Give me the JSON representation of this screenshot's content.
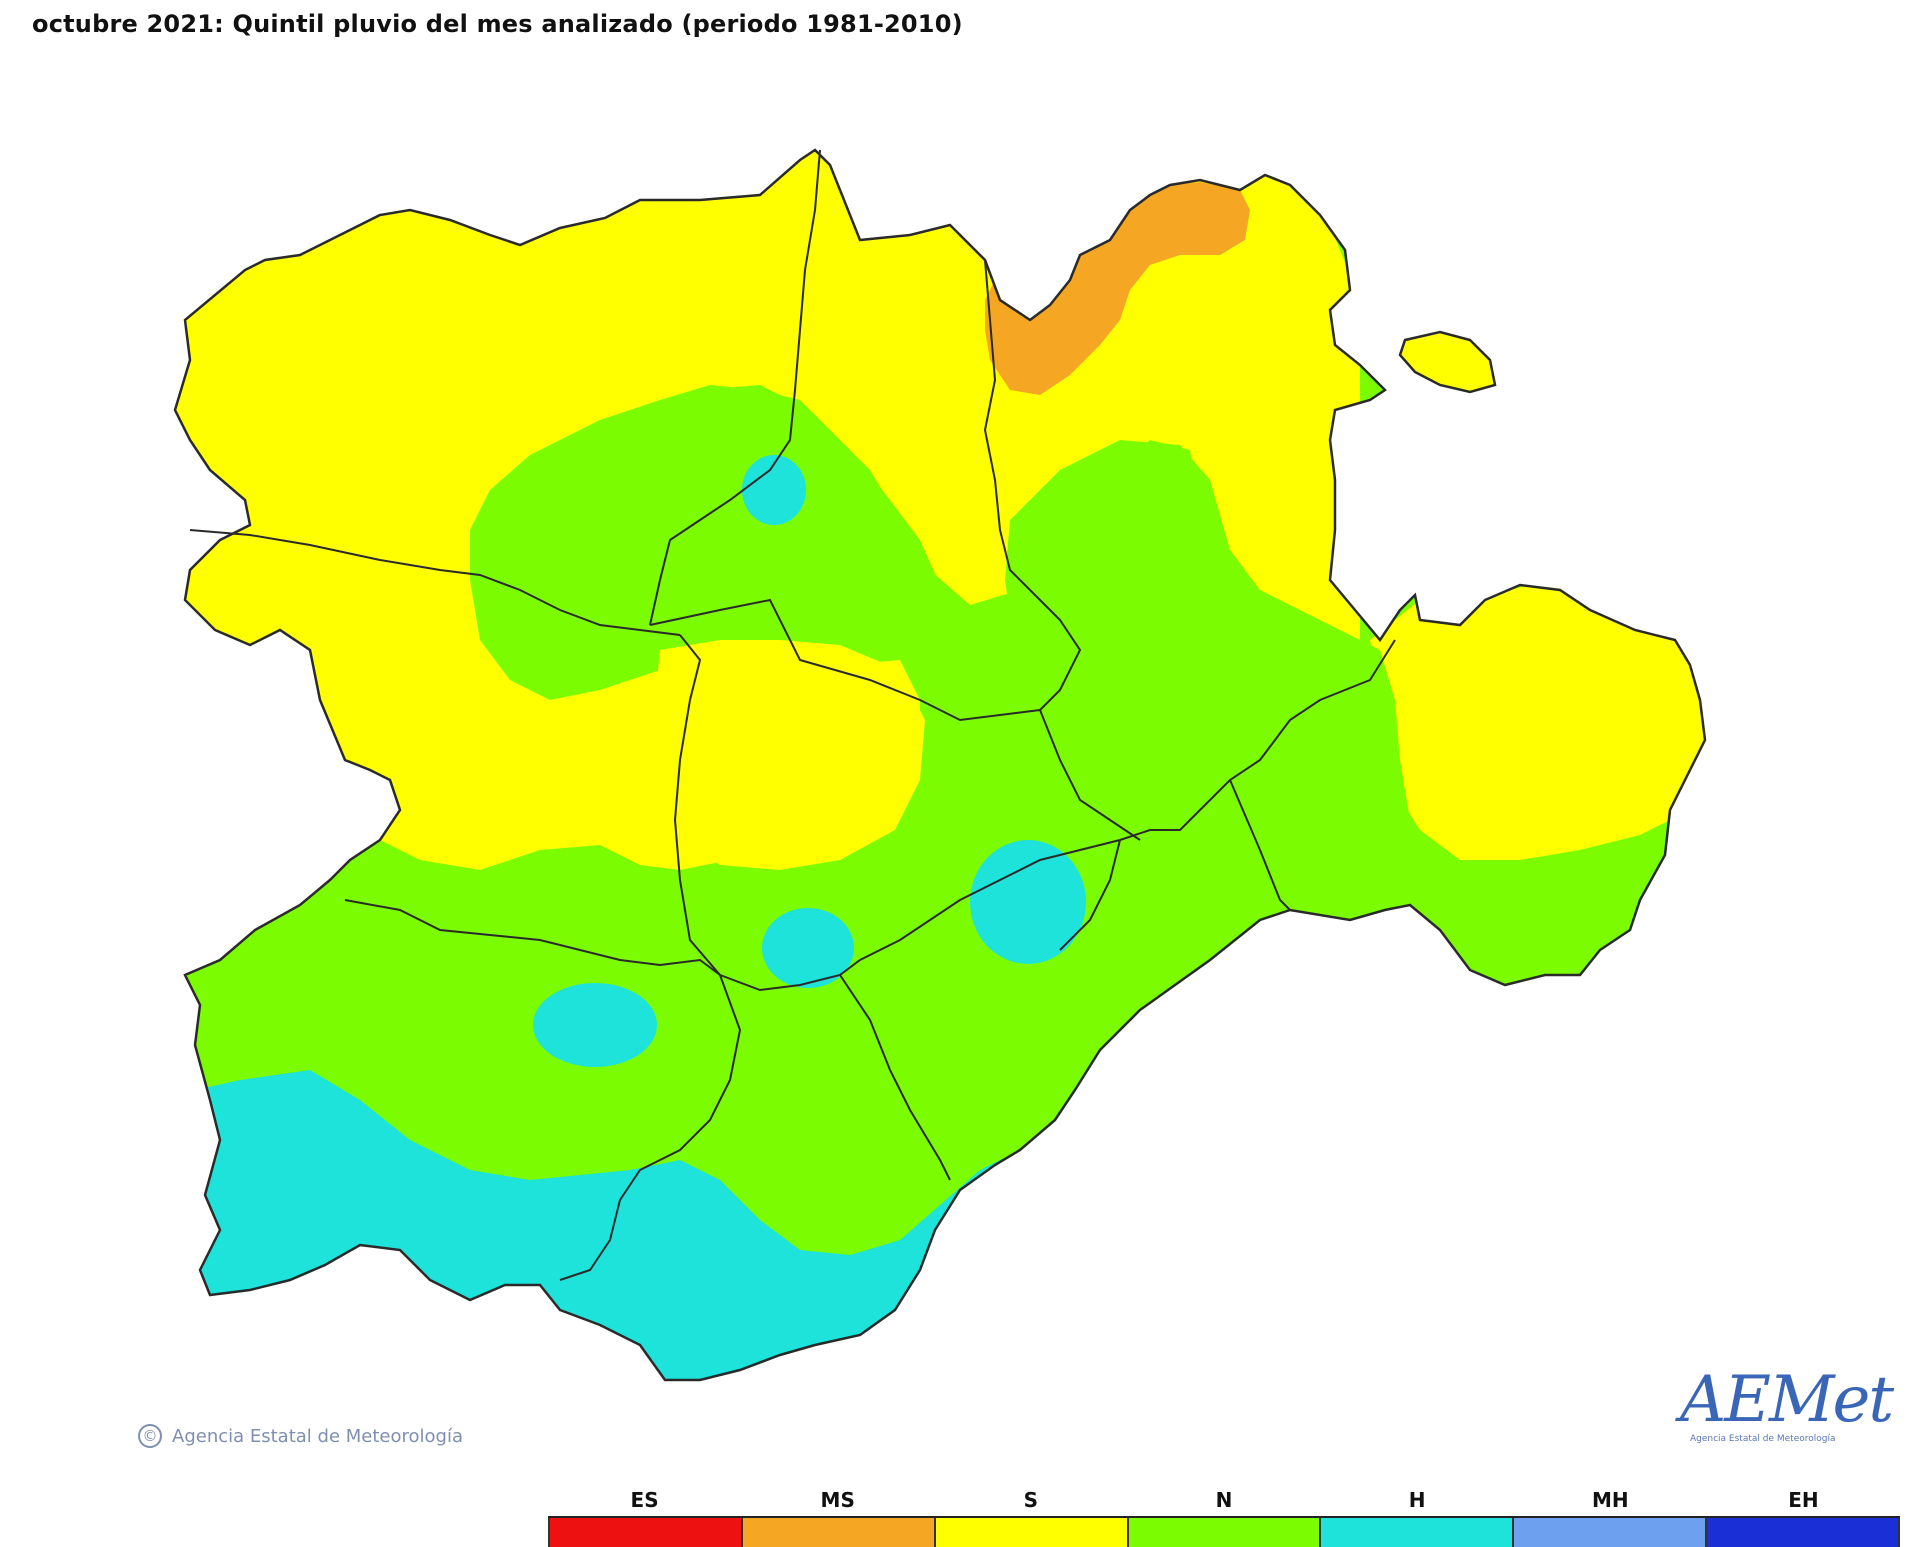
{
  "title": "octubre 2021: Quintil pluvio del mes analizado (periodo 1981-2010)",
  "copyright": "Agencia Estatal de Meteorología",
  "logo": {
    "brand": "AEMet",
    "sub": "Agencia Estatal de Meteorología"
  },
  "legend": {
    "classes": [
      {
        "code": "ES",
        "color": "#ee1111"
      },
      {
        "code": "MS",
        "color": "#f5a623"
      },
      {
        "code": "S",
        "color": "#ffff00"
      },
      {
        "code": "N",
        "color": "#7cfc00"
      },
      {
        "code": "H",
        "color": "#1de3da"
      },
      {
        "code": "MH",
        "color": "#6ea0f0"
      },
      {
        "code": "EH",
        "color": "#1a2fd6"
      }
    ]
  },
  "map_colors": {
    "very_dry": "#f5a623",
    "dry": "#ffff00",
    "normal": "#7cfc00",
    "humid": "#1de3da",
    "border": "#2a2a2a"
  }
}
